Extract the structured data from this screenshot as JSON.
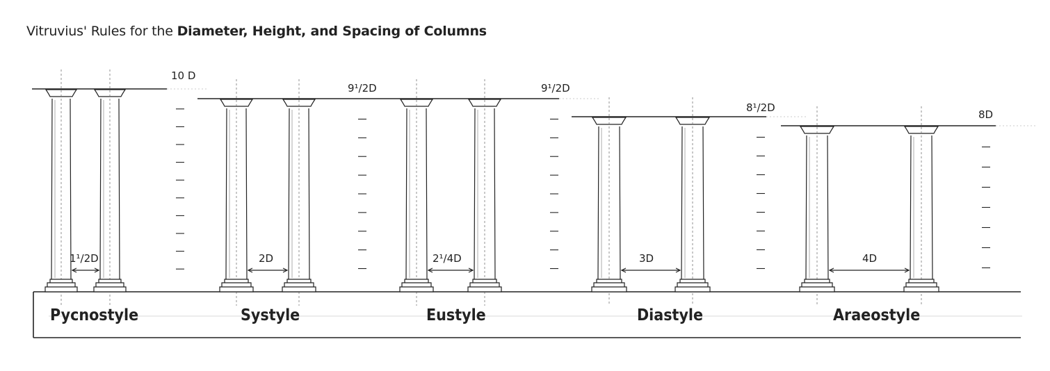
{
  "title": {
    "prefix": "Vitruvius' Rules for the ",
    "bold": "Diameter, Height, and Spacing of Columns"
  },
  "styles": [
    {
      "name": "Pycnostyle",
      "height": "10 D",
      "spacing": "1¹/2D"
    },
    {
      "name": "Systyle",
      "height": "9¹/2D",
      "spacing": "2D"
    },
    {
      "name": "Eustyle",
      "height": "9¹/2D",
      "spacing": "2¹/4D"
    },
    {
      "name": "Diastyle",
      "height": "8¹/2D",
      "spacing": "3D"
    },
    {
      "name": "Araeostyle",
      "height": "8D",
      "spacing": "4D"
    }
  ]
}
